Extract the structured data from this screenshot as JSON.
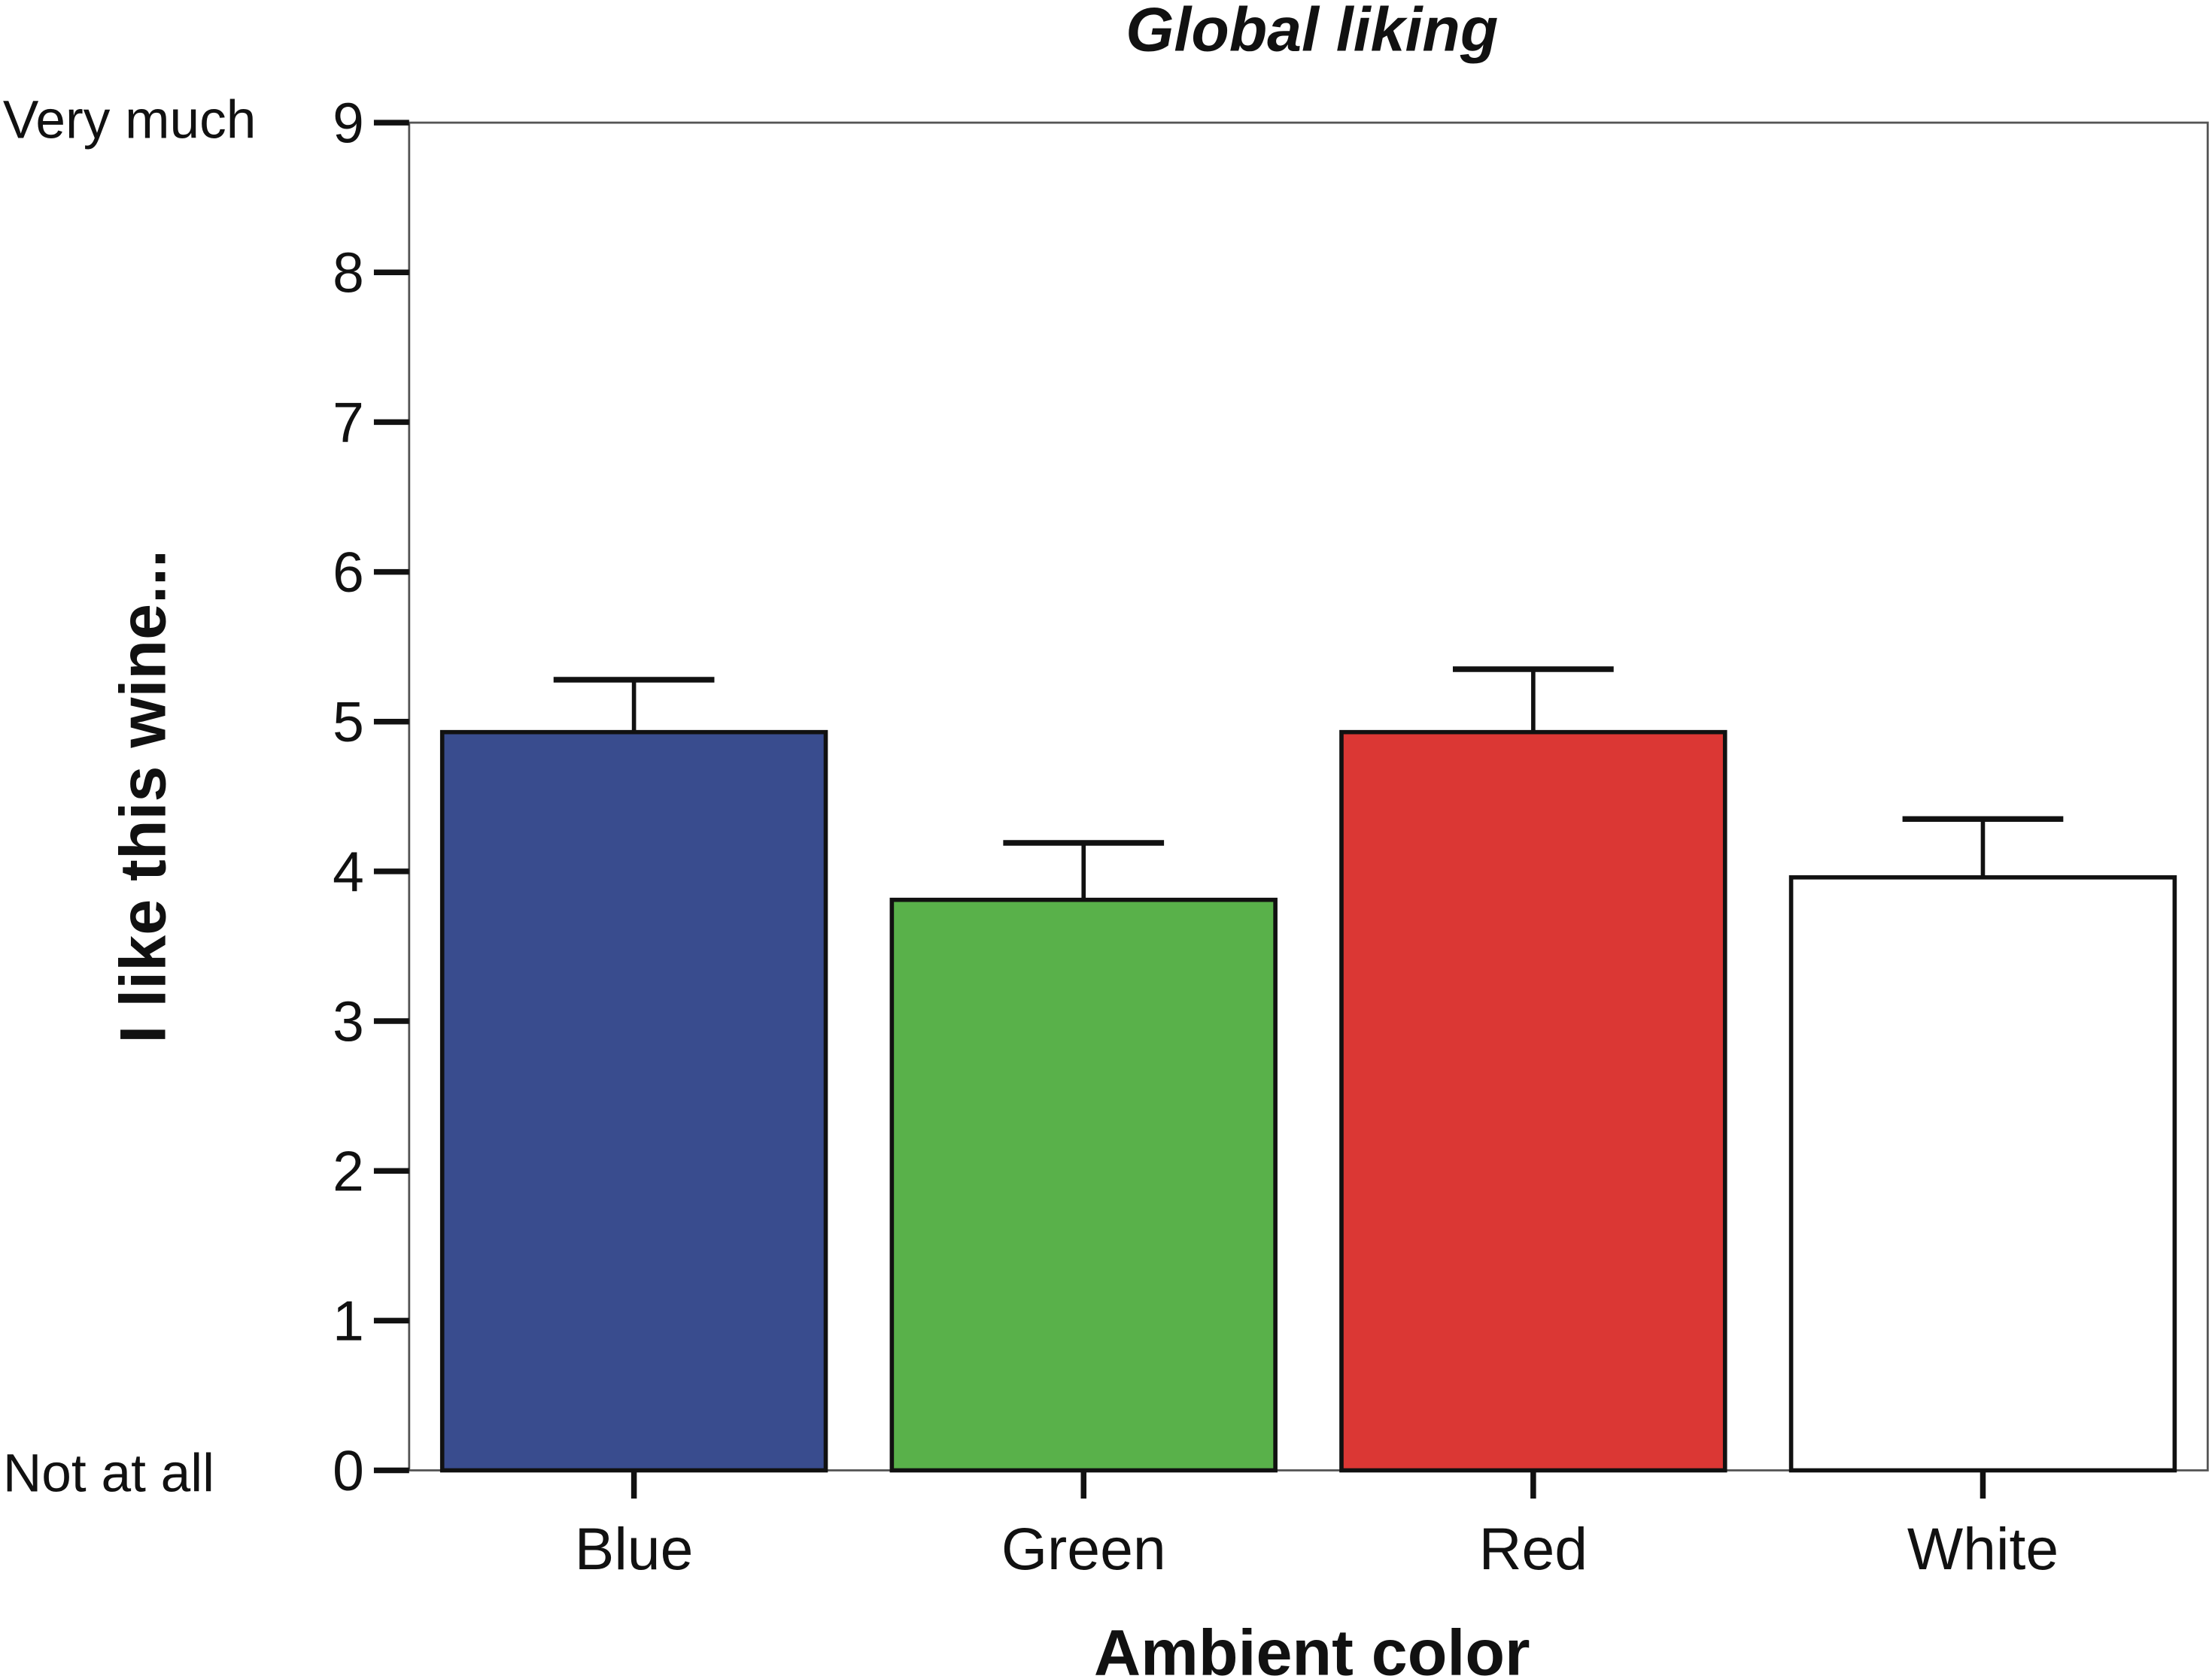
{
  "chart_data": {
    "type": "bar",
    "title": "Global liking",
    "xlabel": "Ambient color",
    "ylabel": "I like this wine...",
    "categories": [
      "Blue",
      "Green",
      "Red",
      "White"
    ],
    "values": [
      4.93,
      3.81,
      4.93,
      3.96
    ],
    "error_upper": [
      5.28,
      4.19,
      5.35,
      4.35
    ],
    "colors": [
      "#394C8E",
      "#59B14A",
      "#DB3734",
      "#FFFFFF"
    ],
    "ylim": [
      0,
      9
    ],
    "yticks": [
      0,
      1,
      2,
      3,
      4,
      5,
      6,
      7,
      8,
      9
    ],
    "y_anchor_labels": {
      "top": "Very much",
      "bottom": "Not at all"
    },
    "grid": false,
    "legend": "none"
  }
}
